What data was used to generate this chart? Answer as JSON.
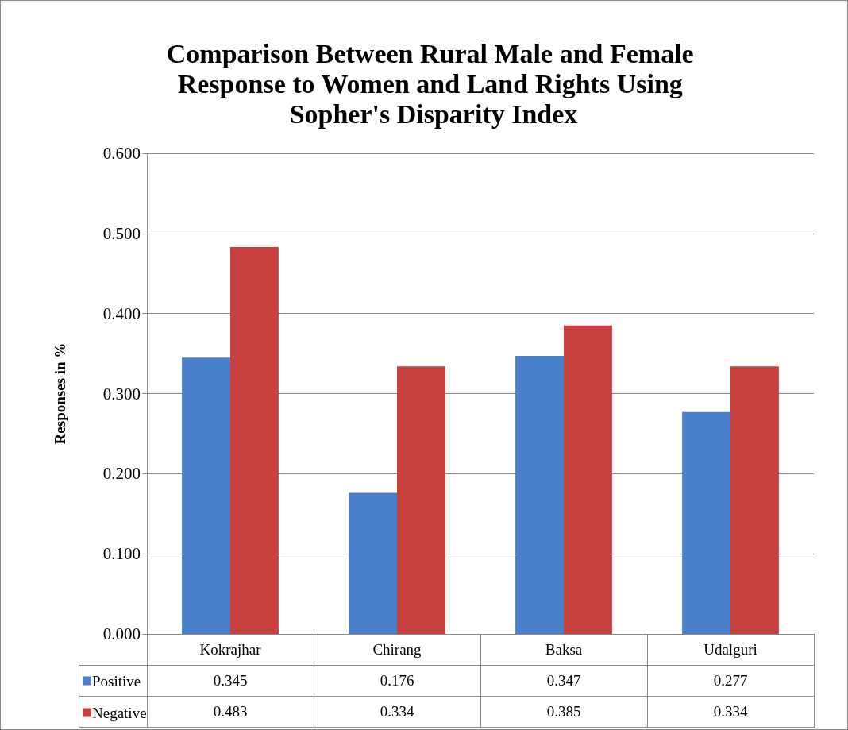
{
  "chart_data": {
    "type": "bar",
    "title": "Comparison Between Rural Male and Female Response to Women and Land Rights Using Sopher's Disparity Index",
    "ylabel": "Responses in %",
    "categories": [
      "Kokrajhar",
      "Chirang",
      "Baksa",
      "Udalguri"
    ],
    "series": [
      {
        "name": "Positive",
        "color": "#4a7fcb",
        "values": [
          0.345,
          0.176,
          0.347,
          0.277
        ]
      },
      {
        "name": "Negative",
        "color": "#c8403d",
        "values": [
          0.483,
          0.334,
          0.385,
          0.334
        ]
      }
    ],
    "ylim": [
      0,
      0.6
    ],
    "yticks": [
      {
        "value": 0,
        "label": "0.000"
      },
      {
        "value": 0.1,
        "label": "0.100"
      },
      {
        "value": 0.2,
        "label": "0.200"
      },
      {
        "value": 0.3,
        "label": "0.300"
      },
      {
        "value": 0.4,
        "label": "0.400"
      },
      {
        "value": 0.5,
        "label": "0.500"
      },
      {
        "value": 0.6,
        "label": "0.600"
      }
    ],
    "grid": "y",
    "legend": "bottom",
    "data_labels": true
  }
}
